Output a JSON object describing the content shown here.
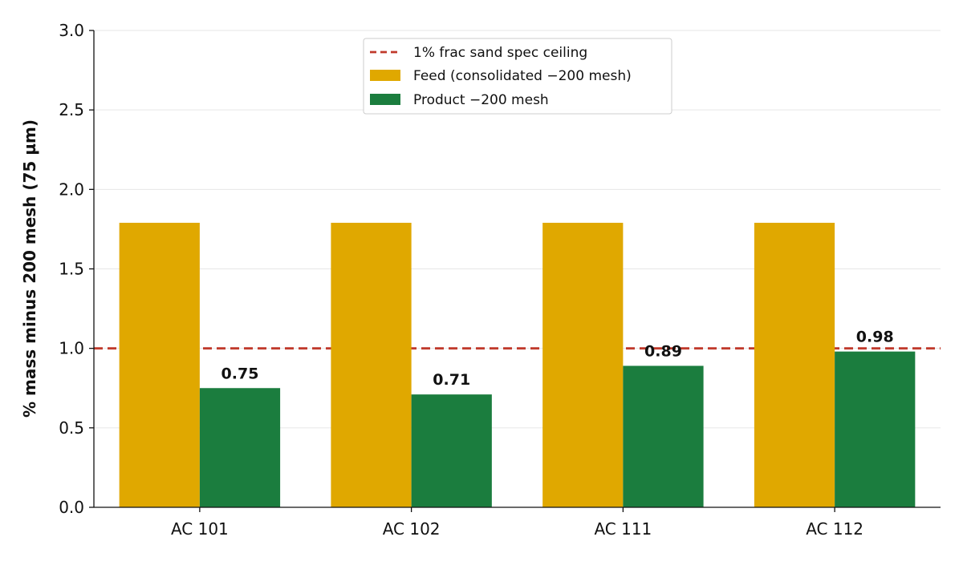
{
  "chart_data": {
    "type": "bar",
    "categories": [
      "AC 101",
      "AC 102",
      "AC 111",
      "AC 112"
    ],
    "series": [
      {
        "name": "Feed (consolidated −200 mesh)",
        "values": [
          1.79,
          1.79,
          1.79,
          1.79
        ],
        "color": "#e0a800",
        "show_labels": false
      },
      {
        "name": "Product −200 mesh",
        "values": [
          0.75,
          0.71,
          0.89,
          0.98
        ],
        "color": "#1b7d3e",
        "show_labels": true
      }
    ],
    "data_labels": [
      "0.75",
      "0.71",
      "0.89",
      "0.98"
    ],
    "reference_line": {
      "name": "1% frac sand spec ceiling",
      "value": 1.0,
      "color": "#c0392b",
      "style": "dashed"
    },
    "ylabel": "% mass minus 200 mesh (75 µm)",
    "ylim": [
      0,
      3.0
    ],
    "yticks": [
      "0.0",
      "0.5",
      "1.0",
      "1.5",
      "2.0",
      "2.5",
      "3.0"
    ],
    "grid": "horizontal",
    "legend_position": "top-center"
  }
}
